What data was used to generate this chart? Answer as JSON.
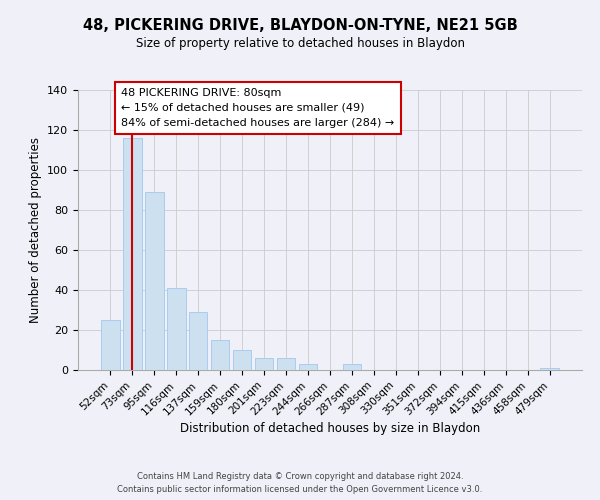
{
  "title": "48, PICKERING DRIVE, BLAYDON-ON-TYNE, NE21 5GB",
  "subtitle": "Size of property relative to detached houses in Blaydon",
  "xlabel": "Distribution of detached houses by size in Blaydon",
  "ylabel": "Number of detached properties",
  "bar_labels": [
    "52sqm",
    "73sqm",
    "95sqm",
    "116sqm",
    "137sqm",
    "159sqm",
    "180sqm",
    "201sqm",
    "223sqm",
    "244sqm",
    "266sqm",
    "287sqm",
    "308sqm",
    "330sqm",
    "351sqm",
    "372sqm",
    "394sqm",
    "415sqm",
    "436sqm",
    "458sqm",
    "479sqm"
  ],
  "bar_values": [
    25,
    116,
    89,
    41,
    29,
    15,
    10,
    6,
    6,
    3,
    0,
    3,
    0,
    0,
    0,
    0,
    0,
    0,
    0,
    0,
    1
  ],
  "bar_color": "#cce0f0",
  "bar_edge_color": "#aaccee",
  "ylim": [
    0,
    140
  ],
  "yticks": [
    0,
    20,
    40,
    60,
    80,
    100,
    120,
    140
  ],
  "property_line_x": 1,
  "property_line_label": "48 PICKERING DRIVE: 80sqm",
  "annotation_line1": "← 15% of detached houses are smaller (49)",
  "annotation_line2": "84% of semi-detached houses are larger (284) →",
  "annotation_box_color": "#ffffff",
  "annotation_box_edge_color": "#cc0000",
  "property_line_color": "#cc0000",
  "footer_line1": "Contains HM Land Registry data © Crown copyright and database right 2024.",
  "footer_line2": "Contains public sector information licensed under the Open Government Licence v3.0.",
  "background_color": "#f0f0f8"
}
